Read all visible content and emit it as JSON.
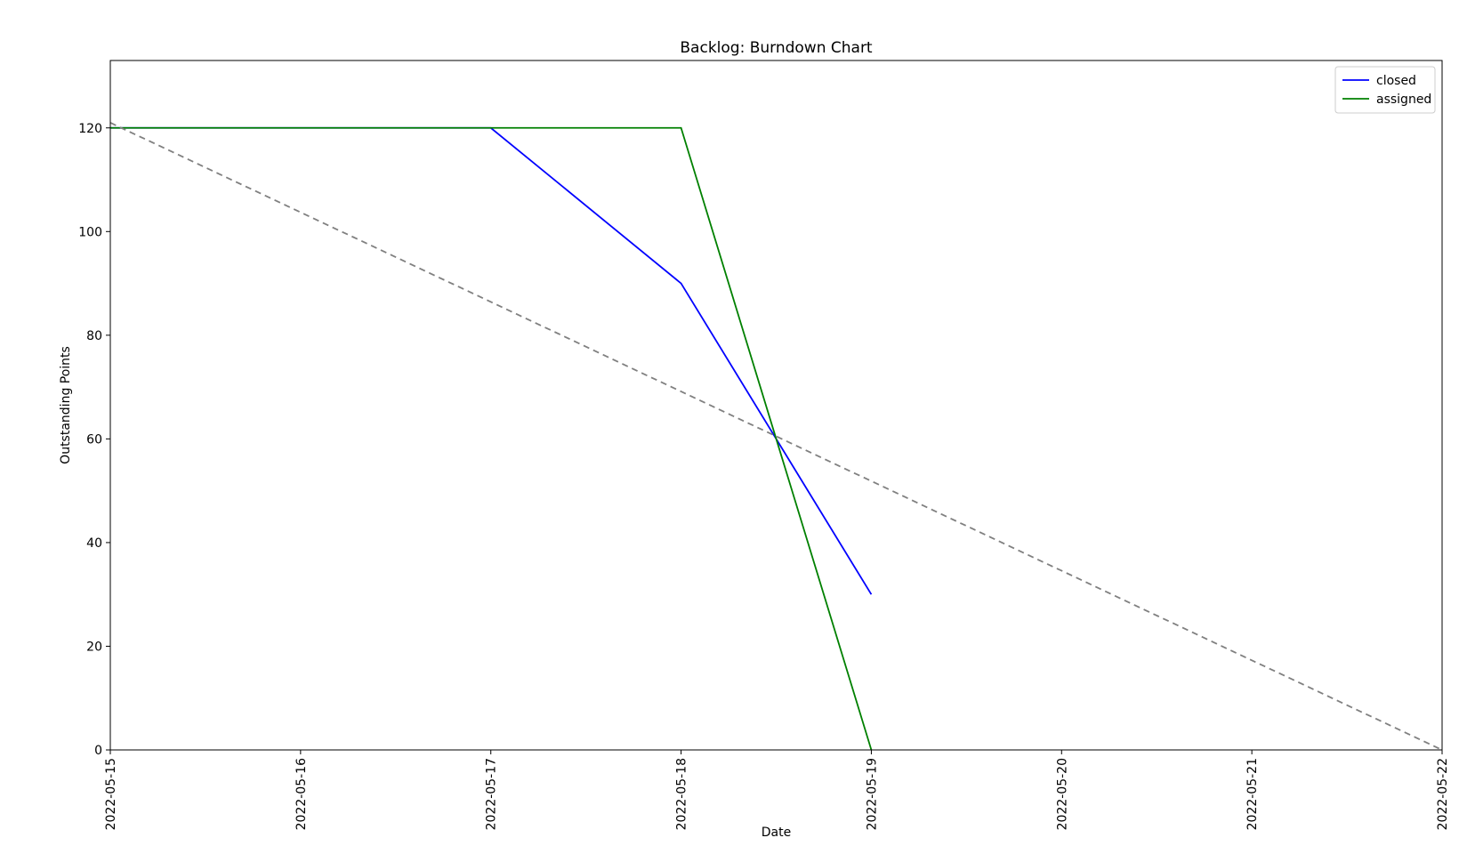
{
  "chart_data": {
    "type": "line",
    "title": "Backlog: Burndown Chart",
    "xlabel": "Date",
    "ylabel": "Outstanding Points",
    "x_ticks": [
      "2022-05-15",
      "2022-05-16",
      "2022-05-17",
      "2022-05-18",
      "2022-05-19",
      "2022-05-20",
      "2022-05-21",
      "2022-05-22"
    ],
    "y_ticks": [
      0,
      20,
      40,
      60,
      80,
      100,
      120
    ],
    "xlim": [
      "2022-05-15",
      "2022-05-22"
    ],
    "ylim": [
      0,
      133
    ],
    "grid": false,
    "legend": {
      "position": "top-right",
      "entries": [
        "closed",
        "assigned"
      ]
    },
    "series": [
      {
        "name": "closed",
        "color": "#0000ff",
        "style": "solid",
        "points": [
          {
            "x": "2022-05-15",
            "y": 120
          },
          {
            "x": "2022-05-17",
            "y": 120
          },
          {
            "x": "2022-05-18",
            "y": 90
          },
          {
            "x": "2022-05-19",
            "y": 30
          }
        ]
      },
      {
        "name": "assigned",
        "color": "#008000",
        "style": "solid",
        "points": [
          {
            "x": "2022-05-15",
            "y": 120
          },
          {
            "x": "2022-05-18",
            "y": 120
          },
          {
            "x": "2022-05-19",
            "y": 0
          }
        ]
      },
      {
        "color": "#808080",
        "style": "dashed",
        "points": [
          {
            "x": "2022-05-15",
            "y": 121
          },
          {
            "x": "2022-05-22",
            "y": 0
          }
        ]
      }
    ]
  }
}
